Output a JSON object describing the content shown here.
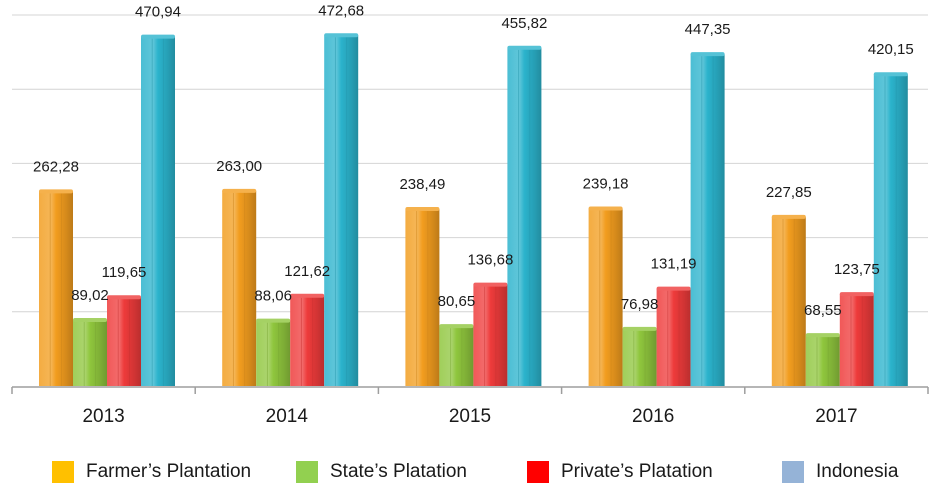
{
  "chart_data": {
    "type": "bar",
    "categories": [
      "2013",
      "2014",
      "2015",
      "2016",
      "2017"
    ],
    "series": [
      {
        "name": "Farmer’s Plantation",
        "values": [
          262.28,
          263.0,
          238.49,
          239.18,
          227.85
        ],
        "labels": [
          "262,28",
          "263,00",
          "238,49",
          "239,18",
          "227,85"
        ],
        "color": "#f29d1f",
        "legend_color": "#ffc000"
      },
      {
        "name": "State’s Platation",
        "values": [
          89.02,
          88.06,
          80.65,
          76.98,
          68.55
        ],
        "labels": [
          "89,02",
          "88,06",
          "80,65",
          "76,98",
          "68,55"
        ],
        "color": "#8fc63d",
        "legend_color": "#92d050"
      },
      {
        "name": "Private’s Platation",
        "values": [
          119.65,
          121.62,
          136.68,
          131.19,
          123.75
        ],
        "labels": [
          "119,65",
          "121,62",
          "136,68",
          "131,19",
          "123,75"
        ],
        "color": "#ee3b3b",
        "legend_color": "#ff0000"
      },
      {
        "name": "Indonesia",
        "values": [
          470.94,
          472.68,
          455.82,
          447.35,
          420.15
        ],
        "labels": [
          "470,94",
          "472,68",
          "455,82",
          "447,35",
          "420,15"
        ],
        "color": "#2bb3cc",
        "legend_color": "#95b3d7"
      }
    ],
    "ylim": [
      0,
      500
    ],
    "y_gridlines": [
      100,
      200,
      300,
      400,
      500
    ],
    "grid": true,
    "legend_position": "bottom"
  }
}
